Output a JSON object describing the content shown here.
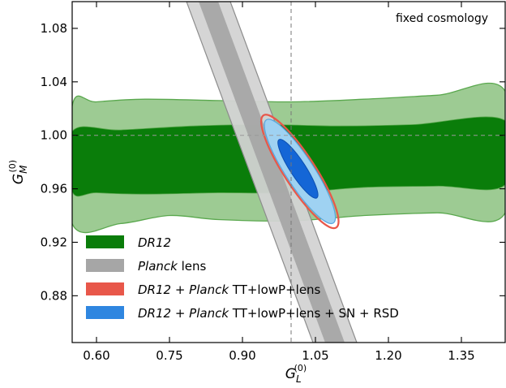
{
  "chart_data": {
    "type": "contour",
    "title": "",
    "annotation": "fixed cosmology",
    "xlabel": {
      "base": "G",
      "sub": "L",
      "sup": "(0)"
    },
    "ylabel": {
      "base": "G",
      "sub": "M",
      "sup": "(0)"
    },
    "xlim": [
      0.55,
      1.44
    ],
    "ylim": [
      0.845,
      1.1
    ],
    "xticks": [
      "0.60",
      "0.75",
      "0.90",
      "1.05",
      "1.20",
      "1.35"
    ],
    "yticks": [
      "0.88",
      "0.92",
      "0.96",
      "1.00",
      "1.04",
      "1.08"
    ],
    "reference_lines": {
      "x": 1.0,
      "y": 1.0
    },
    "grid": false,
    "legend_position": "bottom-left",
    "colors": {
      "dr12_outer": "#9dcb93",
      "dr12_inner": "#0a7d0a",
      "dr12_edge": "#5aa84e",
      "planck_outer": "#d3d3d3",
      "planck_inner": "#a6a6a6",
      "combo_red": "#e8574a",
      "combo_blue_outer": "#9fd2f2",
      "combo_blue_inner": "#1466d6"
    },
    "series": [
      {
        "name": "DR12",
        "color": "#0a7d0a",
        "contours": [
          {
            "level": "2sigma",
            "points": [
              [
                0.55,
                1.022
              ],
              [
                0.6,
                1.025
              ],
              [
                0.7,
                1.027
              ],
              [
                0.85,
                1.026
              ],
              [
                1.0,
                1.025
              ],
              [
                1.15,
                1.027
              ],
              [
                1.3,
                1.03
              ],
              [
                1.44,
                1.033
              ],
              [
                1.44,
                0.942
              ],
              [
                1.3,
                0.942
              ],
              [
                1.15,
                0.94
              ],
              [
                1.0,
                0.936
              ],
              [
                0.85,
                0.937
              ],
              [
                0.75,
                0.94
              ],
              [
                0.65,
                0.934
              ],
              [
                0.55,
                0.934
              ]
            ]
          },
          {
            "level": "1sigma",
            "points": [
              [
                0.55,
                1.003
              ],
              [
                0.65,
                1.004
              ],
              [
                0.8,
                1.007
              ],
              [
                0.95,
                1.008
              ],
              [
                1.1,
                1.007
              ],
              [
                1.25,
                1.008
              ],
              [
                1.44,
                1.011
              ],
              [
                1.44,
                0.963
              ],
              [
                1.3,
                0.962
              ],
              [
                1.15,
                0.961
              ],
              [
                1.0,
                0.957
              ],
              [
                0.85,
                0.957
              ],
              [
                0.7,
                0.956
              ],
              [
                0.6,
                0.957
              ],
              [
                0.55,
                0.958
              ]
            ]
          }
        ]
      },
      {
        "name": "Planck lens",
        "color": "#a6a6a6",
        "band": {
          "centerline": [
            [
              0.83,
              1.1
            ],
            [
              1.09,
              0.845
            ]
          ],
          "outer_halfwidth_x": 0.045,
          "inner_halfwidth_x": 0.02
        }
      },
      {
        "name": "DR12 + Planck TT+lowP+lens",
        "color": "#e8574a",
        "ellipses": [
          {
            "level": "2sigma",
            "cx": 1.018,
            "cy": 0.973,
            "rx": 0.032,
            "ry": 0.05,
            "tilt_deg": -33
          }
        ]
      },
      {
        "name": "DR12 + Planck TT+lowP+lens + SN + RSD",
        "color": "#1466d6",
        "ellipses": [
          {
            "level": "2sigma",
            "cx": 1.018,
            "cy": 0.973,
            "rx": 0.029,
            "ry": 0.046,
            "tilt_deg": -33
          },
          {
            "level": "1sigma",
            "cx": 1.014,
            "cy": 0.975,
            "rx": 0.016,
            "ry": 0.026,
            "tilt_deg": -33
          }
        ]
      }
    ]
  },
  "legend": {
    "items": [
      {
        "parts": [
          {
            "text": "DR12",
            "italic": true
          }
        ]
      },
      {
        "parts": [
          {
            "text": "Planck",
            "italic": true
          },
          {
            "text": " lens",
            "italic": false
          }
        ]
      },
      {
        "parts": [
          {
            "text": "DR12",
            "italic": true
          },
          {
            "text": " + ",
            "italic": false
          },
          {
            "text": "Planck",
            "italic": true
          },
          {
            "text": " TT+lowP+lens",
            "italic": false
          }
        ]
      },
      {
        "parts": [
          {
            "text": "DR12",
            "italic": true
          },
          {
            "text": " + ",
            "italic": false
          },
          {
            "text": "Planck",
            "italic": true
          },
          {
            "text": " TT+lowP+lens + SN + RSD",
            "italic": false
          }
        ]
      }
    ]
  }
}
